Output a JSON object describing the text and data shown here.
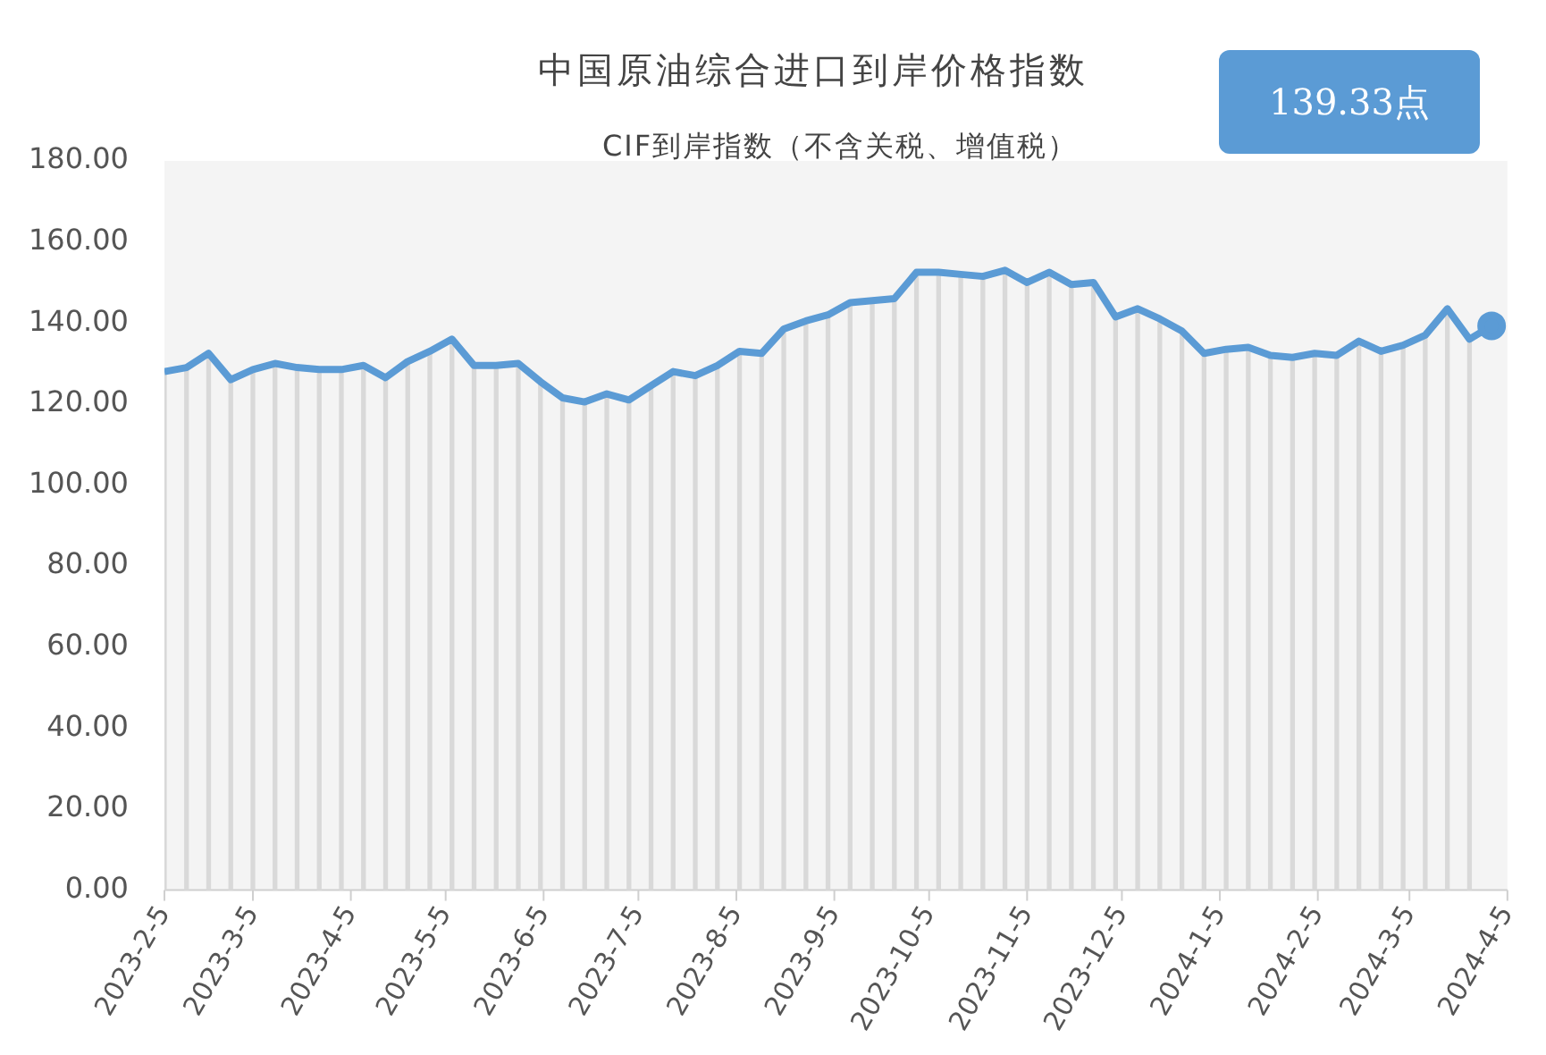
{
  "chart_data": {
    "type": "line",
    "title": "中国原油综合进口到岸价格指数",
    "subtitle": "CIF到岸指数（不含关税、增值税）",
    "annotations": [
      "139.33点"
    ],
    "x": [
      "2023-02-05",
      "2023-02-12",
      "2023-02-19",
      "2023-02-26",
      "2023-03-05",
      "2023-03-12",
      "2023-03-19",
      "2023-03-26",
      "2023-04-02",
      "2023-04-09",
      "2023-04-16",
      "2023-04-23",
      "2023-04-30",
      "2023-05-07",
      "2023-05-14",
      "2023-05-21",
      "2023-05-28",
      "2023-06-04",
      "2023-06-11",
      "2023-06-18",
      "2023-06-25",
      "2023-07-02",
      "2023-07-09",
      "2023-07-16",
      "2023-07-23",
      "2023-07-30",
      "2023-08-06",
      "2023-08-13",
      "2023-08-20",
      "2023-08-27",
      "2023-09-03",
      "2023-09-10",
      "2023-09-17",
      "2023-09-24",
      "2023-10-01",
      "2023-10-08",
      "2023-10-15",
      "2023-10-22",
      "2023-10-29",
      "2023-11-05",
      "2023-11-12",
      "2023-11-19",
      "2023-11-26",
      "2023-12-03",
      "2023-12-10",
      "2023-12-17",
      "2023-12-24",
      "2023-12-31",
      "2024-01-07",
      "2024-01-14",
      "2024-01-21",
      "2024-01-28",
      "2024-02-04",
      "2024-02-11",
      "2024-02-18",
      "2024-02-25",
      "2024-03-03",
      "2024-03-10",
      "2024-03-17",
      "2024-03-24",
      "2024-03-31"
    ],
    "series": [
      {
        "type": "bar",
        "color": "#d9d9d9",
        "values": [
          128,
          129,
          132.5,
          126,
          128.5,
          130,
          129,
          128.5,
          128.5,
          129.5,
          126.5,
          130.5,
          133,
          136,
          129.5,
          129.5,
          130,
          125.5,
          121.5,
          120.5,
          122.5,
          121,
          124.5,
          128,
          127,
          129.5,
          133,
          132.5,
          138.5,
          140.5,
          142,
          145,
          145.5,
          146,
          152.5,
          152.5,
          152,
          151.5,
          153,
          150,
          152.5,
          149.5,
          150,
          141.5,
          143.5,
          141,
          138,
          132.5,
          133.5,
          134,
          132,
          131.5,
          132.5,
          132,
          135.5,
          133,
          134.5,
          137,
          143.5,
          136,
          null
        ]
      },
      {
        "color": "#5b9bd5",
        "values": [
          128,
          129,
          132.5,
          126,
          128.5,
          130,
          129,
          128.5,
          128.5,
          129.5,
          126.5,
          130.5,
          133,
          136,
          129.5,
          129.5,
          130,
          125.5,
          121.5,
          120.5,
          122.5,
          121,
          124.5,
          128,
          127,
          129.5,
          133,
          132.5,
          138.5,
          140.5,
          142,
          145,
          145.5,
          146,
          152.5,
          152.5,
          152,
          151.5,
          153,
          150,
          152.5,
          149.5,
          150,
          141.5,
          143.5,
          141,
          138,
          132.5,
          133.5,
          134,
          132,
          131.5,
          132.5,
          132,
          135.5,
          133,
          134.5,
          137,
          143.5,
          136,
          139.3
        ]
      }
    ],
    "xlim": [
      "2023-02-05",
      "2024-04-05"
    ],
    "xticks": [
      {
        "value": "2023-02-05",
        "label": "2023-2-5"
      },
      {
        "value": "2023-03-05",
        "label": "2023-3-5"
      },
      {
        "value": "2023-04-05",
        "label": "2023-4-5"
      },
      {
        "value": "2023-05-05",
        "label": "2023-5-5"
      },
      {
        "value": "2023-06-05",
        "label": "2023-6-5"
      },
      {
        "value": "2023-07-05",
        "label": "2023-7-5"
      },
      {
        "value": "2023-08-05",
        "label": "2023-8-5"
      },
      {
        "value": "2023-09-05",
        "label": "2023-9-5"
      },
      {
        "value": "2023-10-05",
        "label": "2023-10-5"
      },
      {
        "value": "2023-11-05",
        "label": "2023-11-5"
      },
      {
        "value": "2023-12-05",
        "label": "2023-12-5"
      },
      {
        "value": "2024-01-05",
        "label": "2024-1-5"
      },
      {
        "value": "2024-02-05",
        "label": "2024-2-5"
      },
      {
        "value": "2024-03-05",
        "label": "2024-3-5"
      },
      {
        "value": "2024-04-05",
        "label": "2024-4-5"
      }
    ],
    "ylim": [
      0,
      180
    ],
    "yticks": [
      {
        "value": 0,
        "label": "0.00"
      },
      {
        "value": 20,
        "label": "20.00"
      },
      {
        "value": 40,
        "label": "40.00"
      },
      {
        "value": 60,
        "label": "60.00"
      },
      {
        "value": 80,
        "label": "80.00"
      },
      {
        "value": 100,
        "label": "100.00"
      },
      {
        "value": 120,
        "label": "120.00"
      },
      {
        "value": 140,
        "label": "140.00"
      },
      {
        "value": 160,
        "label": "160.00"
      },
      {
        "value": 180,
        "label": "180.00"
      }
    ],
    "grid": false,
    "legend": false,
    "marker": "none",
    "line_style": "solid"
  }
}
